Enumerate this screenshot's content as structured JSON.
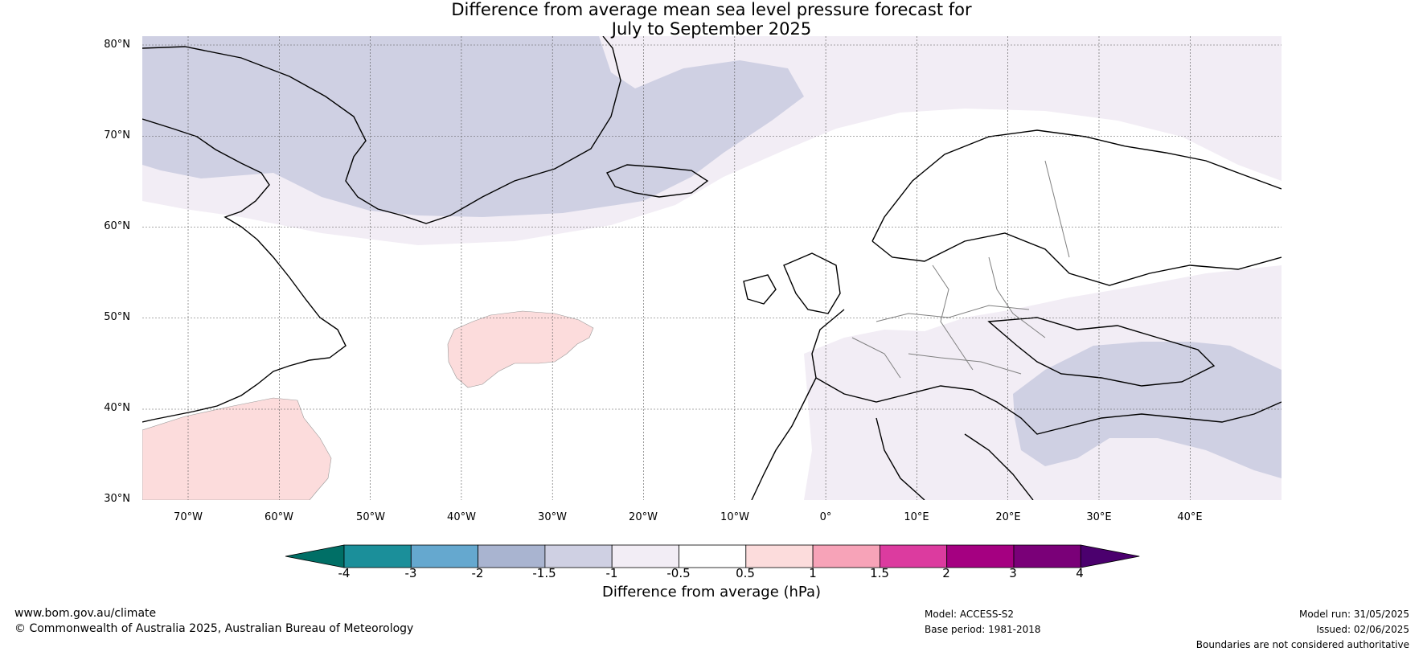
{
  "title": {
    "line1": "Difference from average mean sea level pressure forecast for",
    "line2": "July to September 2025"
  },
  "lat_labels": [
    "80°N",
    "70°N",
    "60°N",
    "50°N",
    "40°N",
    "30°N"
  ],
  "lon_labels": [
    "70°W",
    "60°W",
    "50°W",
    "40°W",
    "30°W",
    "20°W",
    "10°W",
    "0°",
    "10°E",
    "20°E",
    "30°E",
    "40°E"
  ],
  "map_extent": {
    "lon": [
      -75,
      50
    ],
    "lat": [
      30,
      81
    ]
  },
  "colorbar": {
    "title": "Difference from average (hPa)",
    "ticks": [
      "-4",
      "-3",
      "-2",
      "-1.5",
      "-1",
      "-0.5",
      "0.5",
      "1",
      "1.5",
      "2",
      "3",
      "4"
    ],
    "colors": [
      "#006f66",
      "#1b8f9a",
      "#65a8cf",
      "#a9b4d0",
      "#cfd0e3",
      "#f2edf5",
      "#ffffff",
      "#fcdcdc",
      "#f7a3b8",
      "#dc3b9f",
      "#a50081",
      "#7a0078",
      "#4b006e"
    ]
  },
  "anomaly_colors": {
    "weak_negative": "#f2edf5",
    "moderate_negative": "#cfd0e3",
    "weak_positive": "#fcdcdc"
  },
  "footer": {
    "website": "www.bom.gov.au/climate",
    "copyright": "© Commonwealth of Australia 2025, Australian Bureau of Meteorology",
    "model": "Model: ACCESS-S2",
    "base_period": "Base period: 1981-2018",
    "model_run": "Model run: 31/05/2025",
    "issued": "Issued: 02/06/2025",
    "disclaimer": "Boundaries are not considered authoritative"
  }
}
